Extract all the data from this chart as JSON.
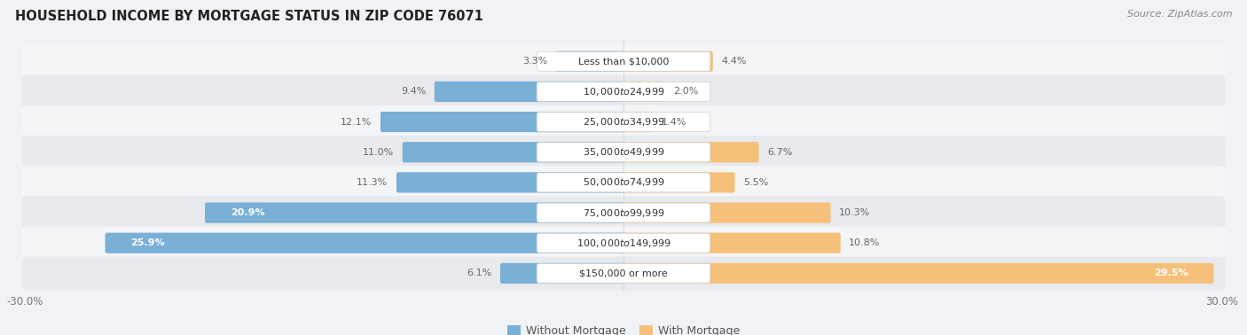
{
  "title": "HOUSEHOLD INCOME BY MORTGAGE STATUS IN ZIP CODE 76071",
  "source": "Source: ZipAtlas.com",
  "categories": [
    "Less than $10,000",
    "$10,000 to $24,999",
    "$25,000 to $34,999",
    "$35,000 to $49,999",
    "$50,000 to $74,999",
    "$75,000 to $99,999",
    "$100,000 to $149,999",
    "$150,000 or more"
  ],
  "without_mortgage": [
    3.3,
    9.4,
    12.1,
    11.0,
    11.3,
    20.9,
    25.9,
    6.1
  ],
  "with_mortgage": [
    4.4,
    2.0,
    1.4,
    6.7,
    5.5,
    10.3,
    10.8,
    29.5
  ],
  "color_without": "#7aafd6",
  "color_with": "#f5c07a",
  "xlim": 30.0,
  "bg_color": "#f0f2f5",
  "row_bg_odd": "#f4f5f7",
  "row_bg_even": "#e8eaed",
  "label_bg": "#ffffff",
  "label_text": "#333333",
  "value_text_dark": "#666666",
  "value_text_light": "#ffffff"
}
